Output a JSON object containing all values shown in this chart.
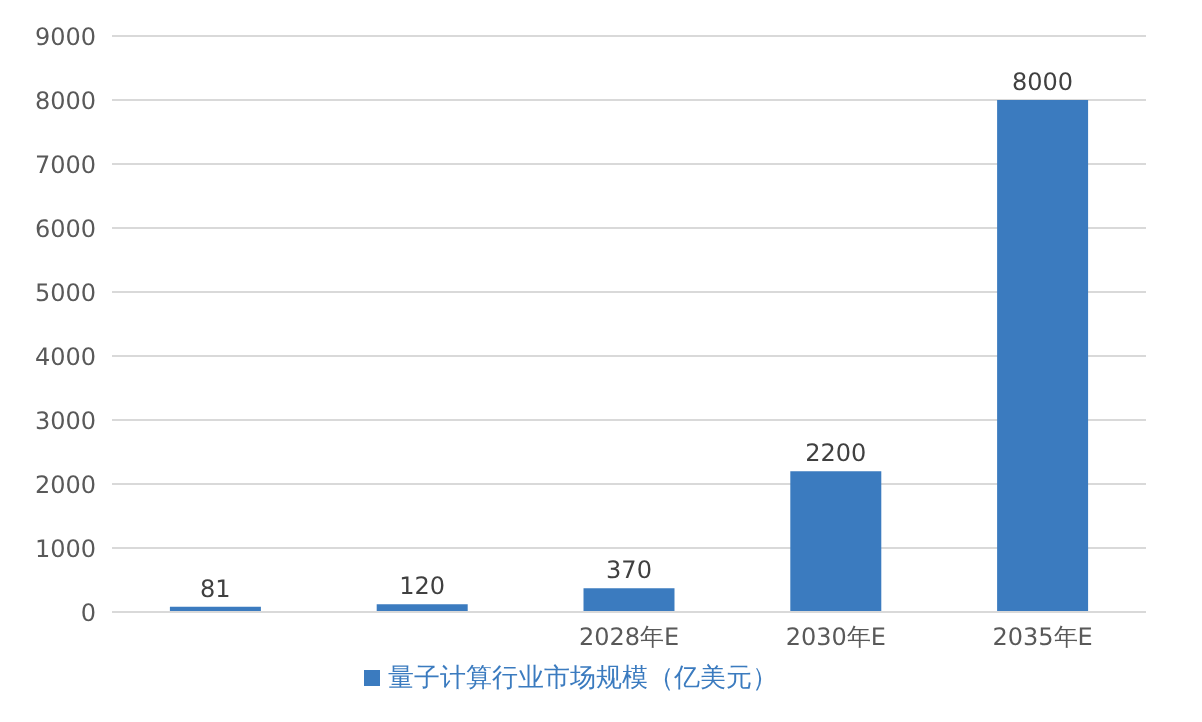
{
  "chart_data": {
    "type": "bar",
    "categories": [
      null,
      null,
      "2028年E",
      "2030年E",
      "2035年E"
    ],
    "series": [
      {
        "name": "量子计算行业市场规模（亿美元）",
        "color": "#3b7bbf",
        "values": [
          81,
          120,
          370,
          2200,
          8000
        ]
      }
    ],
    "ylim": [
      0,
      9000
    ],
    "yticks": [
      0,
      1000,
      2000,
      3000,
      4000,
      5000,
      6000,
      7000,
      8000,
      9000
    ],
    "grid": "y",
    "legend": "bottom",
    "data_labels": true
  }
}
